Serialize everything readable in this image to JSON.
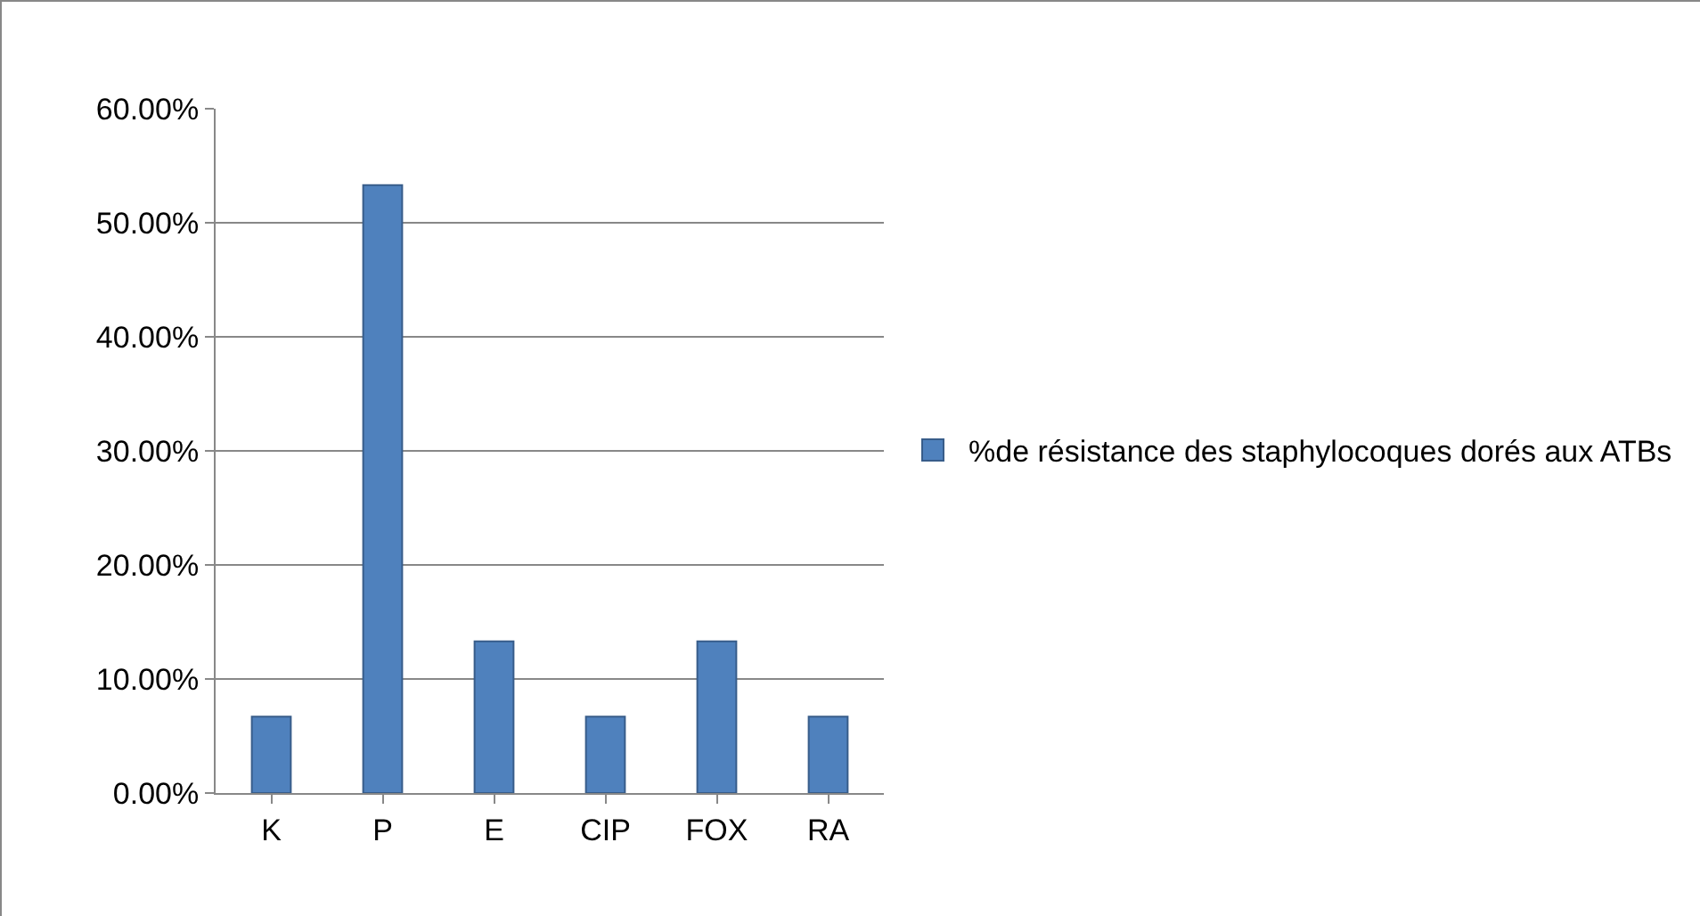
{
  "chart_data": {
    "type": "bar",
    "categories": [
      "K",
      "P",
      "E",
      "CIP",
      "FOX",
      "RA"
    ],
    "series": [
      {
        "name": "%de résistance des staphylocoques dorés aux ATBs",
        "color": "#4f81bd",
        "values": [
          6.7,
          53.3,
          13.3,
          6.7,
          13.3,
          6.7
        ]
      }
    ],
    "ylim": [
      0,
      60
    ],
    "yticks": [
      {
        "value": 0,
        "label": "0.00%"
      },
      {
        "value": 10,
        "label": "10.00%"
      },
      {
        "value": 20,
        "label": "20.00%"
      },
      {
        "value": 30,
        "label": "30.00%"
      },
      {
        "value": 40,
        "label": "40.00%"
      },
      {
        "value": 50,
        "label": "50.00%"
      },
      {
        "value": 60,
        "label": "60.00%"
      }
    ],
    "grid": "y",
    "legend": "right"
  }
}
